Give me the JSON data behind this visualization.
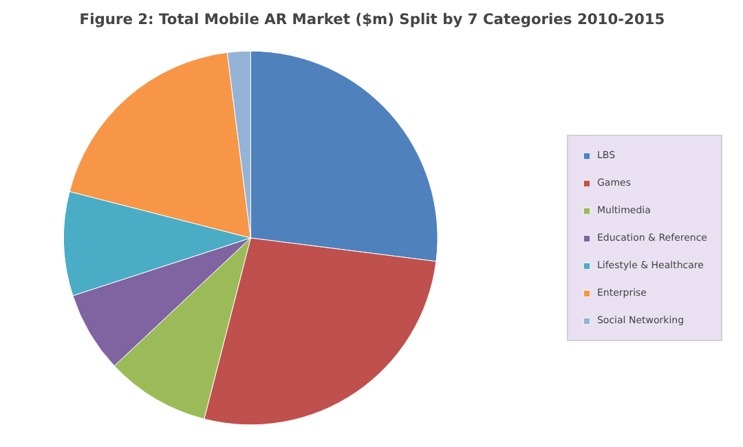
{
  "chart_data": {
    "type": "pie",
    "title": "Figure 2: Total Mobile AR Market ($m) Split by 7 Categories 2010-2015",
    "categories": [
      "LBS",
      "Games",
      "Multimedia",
      "Education & Reference",
      "Lifestyle & Healthcare",
      "Enterprise",
      "Social Networking"
    ],
    "values": [
      27,
      27,
      9,
      7,
      9,
      19,
      2
    ],
    "colors": [
      "#4f81bd",
      "#c0504d",
      "#9bbb59",
      "#8064a2",
      "#4bacc6",
      "#f79646",
      "#95b3d7"
    ],
    "legend": "right"
  }
}
